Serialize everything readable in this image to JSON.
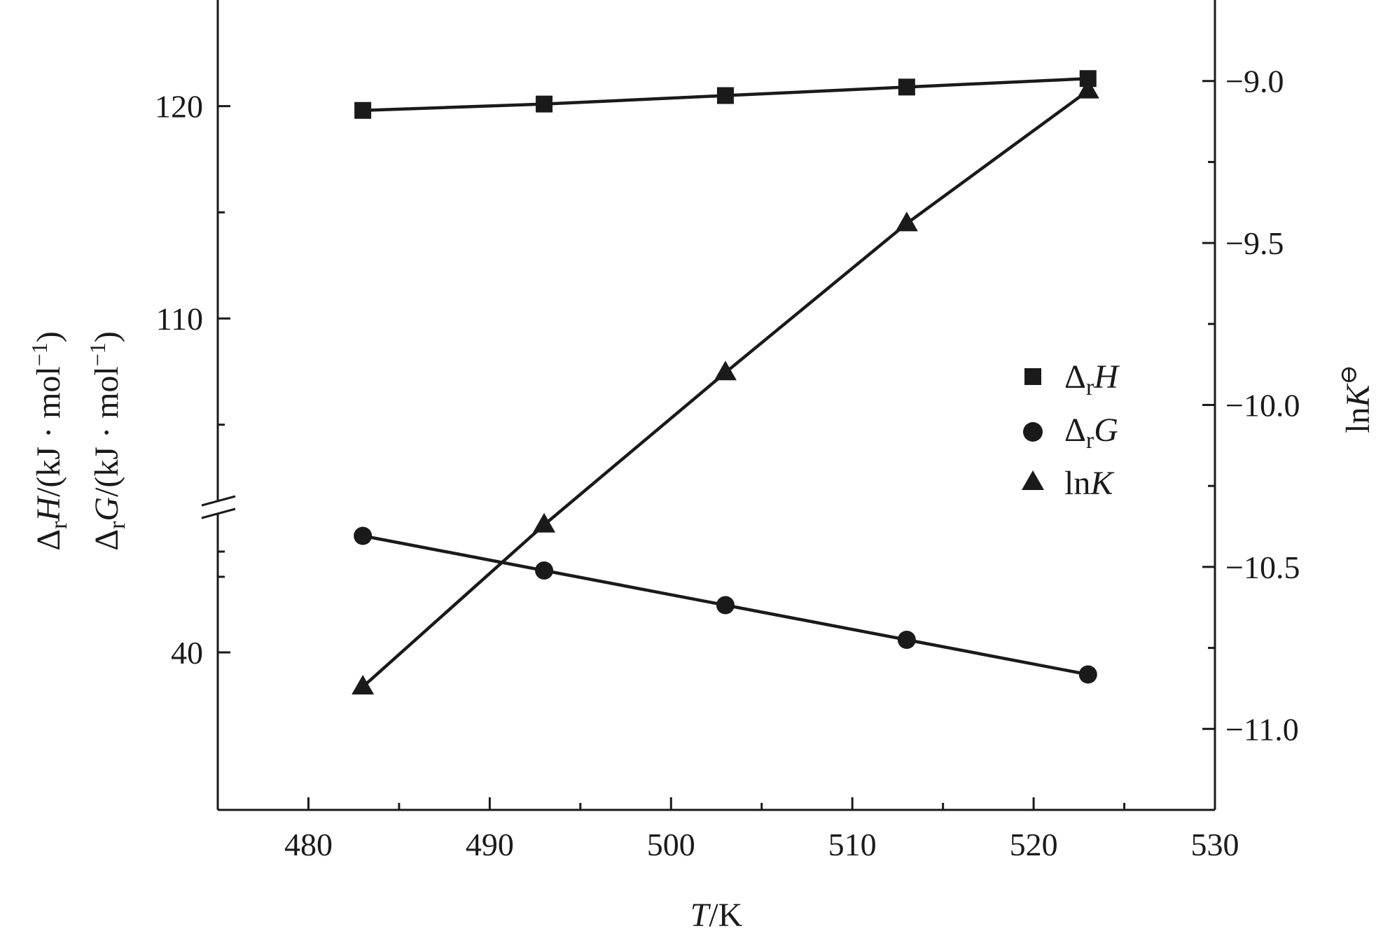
{
  "chart_data": {
    "type": "line",
    "x": [
      483,
      493,
      503,
      513,
      523
    ],
    "xlim": [
      475,
      530
    ],
    "x_ticks": [
      480,
      490,
      500,
      510,
      520,
      530
    ],
    "xlabel": {
      "italic": "T",
      "rest": "/K"
    },
    "left_axis": {
      "broken": true,
      "upper_range": [
        101.1,
        125
      ],
      "lower_range": [
        35,
        44.6
      ],
      "ticks": [
        40,
        110,
        120
      ]
    },
    "right_axis": {
      "range": [
        -11.25,
        -8.75
      ],
      "ticks": [
        -9.0,
        -9.5,
        -10.0,
        -10.5,
        -11.0
      ],
      "tick_labels": [
        "−9.0",
        "−9.5",
        "−10.0",
        "−10.5",
        "−11.0"
      ]
    },
    "ylabel_left_1": {
      "delta": "Δ",
      "sub": "r",
      "sym": "H",
      "rest": "/(kJ · mol",
      "sup": "−1",
      "close": ")"
    },
    "ylabel_left_2": {
      "delta": "Δ",
      "sub": "r",
      "sym": "G",
      "rest": "/(kJ · mol",
      "sup": "−1",
      "close": ")"
    },
    "ylabel_right": {
      "main": "ln",
      "sym": "K",
      "sup": "⊖"
    },
    "series": [
      {
        "name": "ΔrH",
        "marker": "square",
        "axis": "left",
        "values": [
          119.8,
          120.1,
          120.5,
          120.9,
          121.3
        ]
      },
      {
        "name": "ΔrG",
        "marker": "circle",
        "axis": "left",
        "values": [
          43.7,
          42.6,
          41.5,
          40.4,
          39.3
        ]
      },
      {
        "name": "lnK",
        "marker": "triangle",
        "axis": "right",
        "values": [
          -10.87,
          -10.37,
          -9.9,
          -9.44,
          -9.03
        ]
      }
    ],
    "legend": {
      "position": "right",
      "entries": [
        {
          "delta": "Δ",
          "sub": "r",
          "sym": "H"
        },
        {
          "delta": "Δ",
          "sub": "r",
          "sym": "G"
        },
        {
          "main": "ln",
          "sym": "K"
        }
      ]
    },
    "grid": false
  }
}
